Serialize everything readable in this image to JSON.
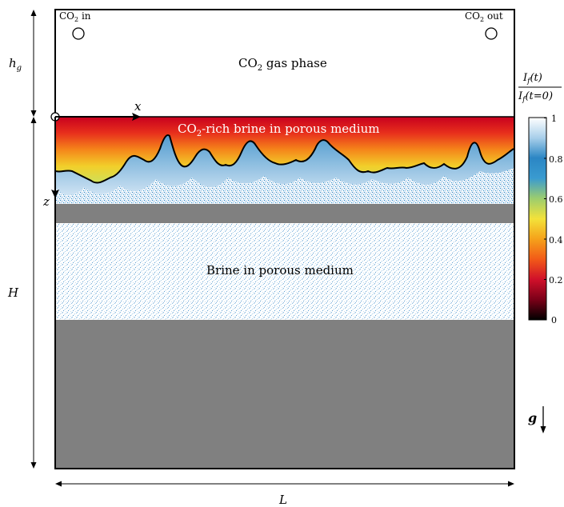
{
  "labels": {
    "co2_in": "CO",
    "co2_in_sub": "2",
    "co2_in_suffix": " in",
    "co2_out": "CO",
    "co2_out_sub": "2",
    "co2_out_suffix": " out",
    "gas_phase": "CO",
    "gas_phase_sub": "2",
    "gas_phase_suffix": " gas phase",
    "rich_brine": "CO",
    "rich_brine_sub": "2",
    "rich_brine_suffix": "-rich brine in porous medium",
    "brine": "Brine in porous medium",
    "hg": "h",
    "hg_sub": "g",
    "H": "H",
    "L": "L",
    "x_axis": "x",
    "z_axis": "z",
    "g": "g"
  },
  "colorbar": {
    "title_num": "I",
    "title_num_sub": "f",
    "title_num_arg": "(t)",
    "title_den": "I",
    "title_den_sub": "f",
    "title_den_arg": "(t=0)",
    "ticks": [
      "1",
      "0.8",
      "0.6",
      "0.4",
      "0.2",
      "0"
    ],
    "tick_values": [
      1,
      0.8,
      0.6,
      0.4,
      0.2,
      0
    ],
    "colormap": [
      "#000000",
      "#7a0018",
      "#d0102a",
      "#f25a18",
      "#f5a21a",
      "#f3e23a",
      "#9ccd6e",
      "#2b86c4",
      "#8cbce2",
      "#f4f8fc",
      "#ffffff"
    ]
  },
  "colors": {
    "gray_layer": "#808080",
    "frame": "#000000",
    "brine_blue": "#2b86c4"
  }
}
